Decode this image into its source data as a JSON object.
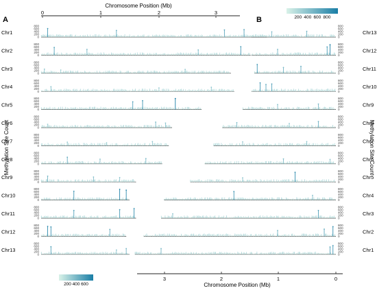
{
  "chart_data": [
    {
      "type": "bar",
      "panel_label": "A",
      "xlabel": "Chromosome Position (Mb)",
      "ylabel": "Methylation Site Count",
      "x_ticks": [
        "0",
        "1",
        "2",
        "3"
      ],
      "y_ticks": [
        "0",
        "200",
        "400",
        "600",
        "800"
      ],
      "ylim": [
        0,
        800
      ],
      "color_scale": {
        "ticks": [
          "200",
          "400",
          "600"
        ],
        "low": "#d9f2e8",
        "high": "#1a7ea6"
      },
      "series": [
        {
          "name": "Chr1",
          "length_mb": 3.45,
          "peaks": [
            [
              0.1,
              620
            ],
            [
              1.15,
              480
            ],
            [
              2.8,
              520
            ],
            [
              3.1,
              540
            ]
          ]
        },
        {
          "name": "Chr2",
          "length_mb": 3.2,
          "peaks": [
            [
              0.2,
              560
            ],
            [
              0.7,
              420
            ],
            [
              2.4,
              380
            ],
            [
              3.05,
              620
            ]
          ]
        },
        {
          "name": "Chr3",
          "length_mb": 2.9,
          "peaks": [
            [
              0.05,
              300
            ],
            [
              0.3,
              240
            ],
            [
              2.2,
              280
            ]
          ]
        },
        {
          "name": "Chr4",
          "length_mb": 2.95,
          "peaks": [
            [
              0.15,
              340
            ],
            [
              1.8,
              250
            ],
            [
              2.6,
              300
            ]
          ]
        },
        {
          "name": "Chr5",
          "length_mb": 2.45,
          "peaks": [
            [
              1.4,
              560
            ],
            [
              1.55,
              640
            ],
            [
              2.05,
              800
            ]
          ]
        },
        {
          "name": "Chr6",
          "length_mb": 2.0,
          "peaks": [
            [
              0.1,
              240
            ],
            [
              1.75,
              400
            ],
            [
              1.9,
              330
            ]
          ]
        },
        {
          "name": "Chr7",
          "length_mb": 1.95,
          "peaks": [
            [
              0.4,
              260
            ],
            [
              1.0,
              220
            ],
            [
              1.7,
              300
            ]
          ]
        },
        {
          "name": "Chr8",
          "length_mb": 1.85,
          "peaks": [
            [
              0.4,
              480
            ],
            [
              0.9,
              340
            ],
            [
              1.6,
              380
            ]
          ]
        },
        {
          "name": "Chr9",
          "length_mb": 1.45,
          "peaks": [
            [
              0.1,
              420
            ],
            [
              0.8,
              360
            ],
            [
              1.2,
              320
            ]
          ]
        },
        {
          "name": "Chr10",
          "length_mb": 1.35,
          "peaks": [
            [
              0.5,
              640
            ],
            [
              1.2,
              780
            ],
            [
              1.3,
              720
            ]
          ]
        },
        {
          "name": "Chr11",
          "length_mb": 1.45,
          "peaks": [
            [
              0.5,
              560
            ],
            [
              1.2,
              620
            ],
            [
              1.42,
              700
            ]
          ]
        },
        {
          "name": "Chr12",
          "length_mb": 1.3,
          "peaks": [
            [
              0.1,
              720
            ],
            [
              0.15,
              680
            ],
            [
              1.05,
              500
            ]
          ]
        },
        {
          "name": "Chr13",
          "length_mb": 1.35,
          "peaks": [
            [
              0.15,
              560
            ],
            [
              1.15,
              320
            ],
            [
              1.3,
              420
            ]
          ]
        }
      ]
    },
    {
      "type": "bar",
      "panel_label": "B",
      "xlabel": "Chromosome Position (Mb)",
      "ylabel": "Methylation Site Count",
      "x_ticks": [
        "3",
        "2",
        "1",
        "0"
      ],
      "y_ticks": [
        "0",
        "200",
        "400",
        "600",
        "800"
      ],
      "ylim": [
        0,
        800
      ],
      "color_scale": {
        "ticks": [
          "200",
          "400",
          "600",
          "800"
        ],
        "low": "#d9f2e8",
        "high": "#1a7ea6"
      },
      "series": [
        {
          "name": "Chr13",
          "length_mb": 1.45,
          "peaks": [
            [
              0.5,
              420
            ],
            [
              1.1,
              380
            ]
          ]
        },
        {
          "name": "Chr12",
          "length_mb": 1.45,
          "peaks": [
            [
              0.1,
              760
            ],
            [
              0.15,
              600
            ],
            [
              1.0,
              420
            ]
          ]
        },
        {
          "name": "Chr11",
          "length_mb": 1.4,
          "peaks": [
            [
              1.35,
              640
            ],
            [
              0.6,
              500
            ],
            [
              0.9,
              420
            ]
          ]
        },
        {
          "name": "Chr10",
          "length_mb": 1.45,
          "peaks": [
            [
              1.3,
              620
            ],
            [
              1.1,
              540
            ],
            [
              1.2,
              500
            ]
          ]
        },
        {
          "name": "Chr9",
          "length_mb": 1.6,
          "peaks": [
            [
              0.3,
              400
            ],
            [
              1.0,
              360
            ]
          ]
        },
        {
          "name": "Chr8",
          "length_mb": 1.95,
          "peaks": [
            [
              0.3,
              440
            ],
            [
              1.7,
              360
            ],
            [
              0.8,
              300
            ]
          ]
        },
        {
          "name": "Chr7",
          "length_mb": 2.1,
          "peaks": [
            [
              0.5,
              300
            ],
            [
              1.6,
              280
            ]
          ]
        },
        {
          "name": "Chr6",
          "length_mb": 2.25,
          "peaks": [
            [
              0.9,
              360
            ],
            [
              0.1,
              320
            ]
          ]
        },
        {
          "name": "Chr5",
          "length_mb": 2.5,
          "peaks": [
            [
              0.7,
              700
            ],
            [
              1.6,
              300
            ]
          ]
        },
        {
          "name": "Chr4",
          "length_mb": 2.95,
          "peaks": [
            [
              1.75,
              620
            ],
            [
              0.4,
              340
            ]
          ]
        },
        {
          "name": "Chr3",
          "length_mb": 3.0,
          "peaks": [
            [
              0.3,
              560
            ],
            [
              2.8,
              320
            ]
          ]
        },
        {
          "name": "Chr2",
          "length_mb": 3.3,
          "peaks": [
            [
              0.05,
              700
            ],
            [
              0.2,
              520
            ],
            [
              1.0,
              420
            ]
          ]
        },
        {
          "name": "Chr1",
          "length_mb": 3.45,
          "peaks": [
            [
              0.05,
              640
            ],
            [
              0.1,
              540
            ],
            [
              3.0,
              420
            ]
          ]
        }
      ]
    }
  ]
}
